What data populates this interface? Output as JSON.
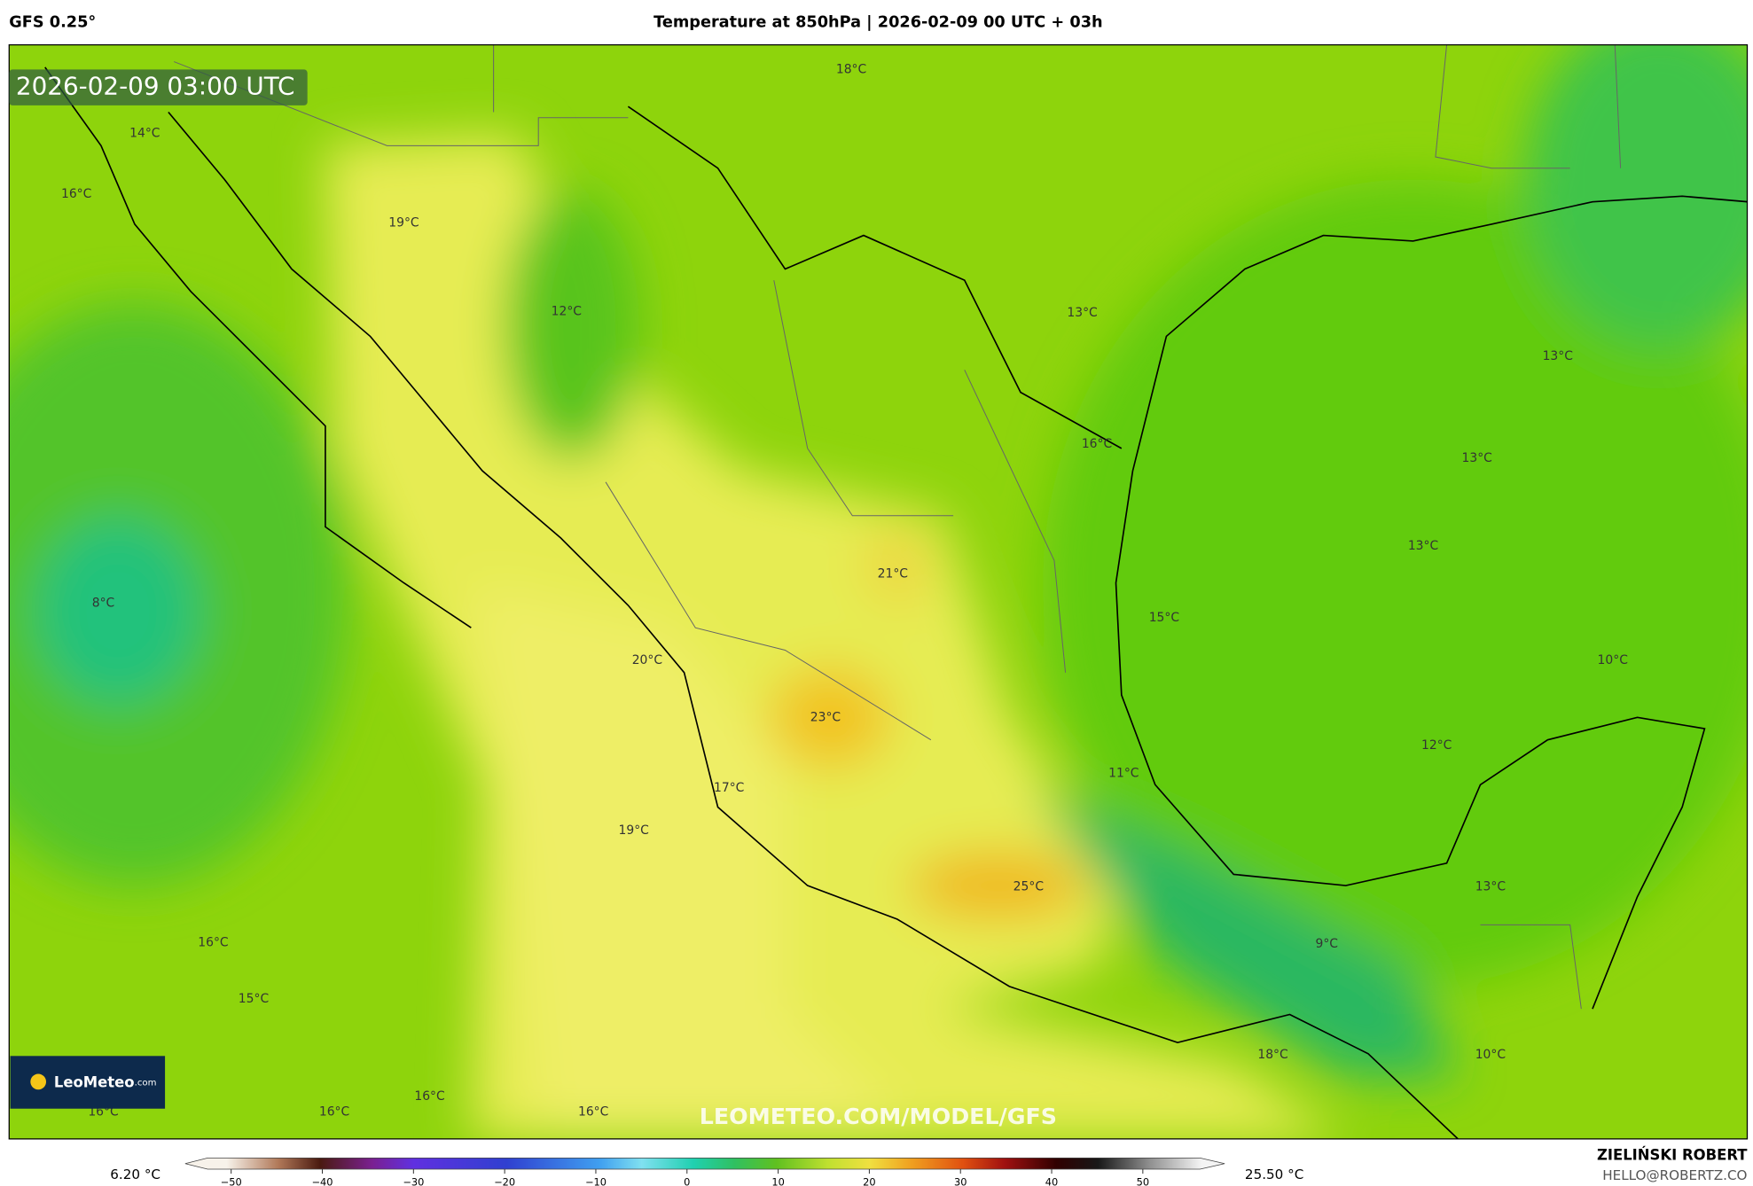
{
  "header": {
    "model": "GFS 0.25°",
    "title": "Temperature at 850hPa | 2026-02-09 00 UTC + 03h"
  },
  "map": {
    "timestamp": "2026-02-09 03:00 UTC",
    "watermark": "LEOMETEO.COM/MODEL/GFS",
    "logo": {
      "brand": "LeoMeteo",
      "suffix": ".com"
    },
    "labels": [
      "18°C",
      "14°C",
      "16°C",
      "19°C",
      "12°C",
      "13°C",
      "13°C",
      "16°C",
      "13°C",
      "13°C",
      "21°C",
      "8°C",
      "15°C",
      "20°C",
      "10°C",
      "23°C",
      "12°C",
      "11°C",
      "17°C",
      "19°C",
      "25°C",
      "13°C",
      "16°C",
      "9°C",
      "15°C",
      "18°C",
      "10°C",
      "16°C",
      "16°C",
      "16°C",
      "16°C"
    ]
  },
  "legend": {
    "min": "6.20 °C",
    "max": "25.50 °C",
    "ticks": [
      {
        "value": -50,
        "label": "−50"
      },
      {
        "value": -40,
        "label": "−40"
      },
      {
        "value": -30,
        "label": "−30"
      },
      {
        "value": -20,
        "label": "−20"
      },
      {
        "value": -10,
        "label": "−10"
      },
      0,
      10,
      20,
      30,
      40,
      50
    ]
  },
  "footer": {
    "author": "ZIELIŃSKI ROBERT",
    "email": "HELLO@ROBERTZ.CO"
  }
}
